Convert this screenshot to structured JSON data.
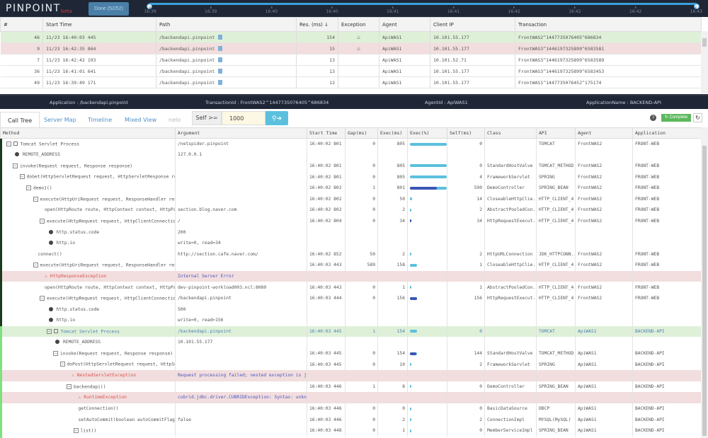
{
  "header": {
    "logo": "PINPOINT",
    "beta": "beta",
    "done_label": "Done (52/52)",
    "timeline_ticks": [
      "16:39",
      "16:39",
      "16:40",
      "16:40",
      "16:41",
      "16:41",
      "16:42",
      "16:42",
      "16:42",
      "16:43"
    ]
  },
  "transactions": {
    "columns": [
      "#",
      "Start Time",
      "Path",
      "Res. (ms) ↓",
      "Exception",
      "Agent",
      "Client IP",
      "Transaction"
    ],
    "rows": [
      {
        "n": "46",
        "start": "11/23 16:40:03 445",
        "path": "/backendapi.pinpoint",
        "res": "154",
        "exception": true,
        "agent": "ApiWAS1",
        "ip": "10.101.55.177",
        "tx": "FrontWAS2^1447735076405^686834",
        "state": "ok"
      },
      {
        "n": "9",
        "start": "11/23 16:42:35 864",
        "path": "/backendapi.pinpoint",
        "res": "15",
        "exception": true,
        "agent": "ApiWAS1",
        "ip": "10.101.55.177",
        "tx": "FrontWAS3^1446197325899^6583581",
        "state": "err"
      },
      {
        "n": "7",
        "start": "11/23 16:42:42 193",
        "path": "/backendapi.pinpoint",
        "res": "13",
        "exception": false,
        "agent": "ApiWAS1",
        "ip": "10.101.52.71",
        "tx": "FrontWAS3^1446197325899^6583589",
        "state": ""
      },
      {
        "n": "36",
        "start": "11/23 16:41:01 641",
        "path": "/backendapi.pinpoint",
        "res": "13",
        "exception": false,
        "agent": "ApiWAS1",
        "ip": "10.101.55.177",
        "tx": "FrontWAS3^1446197325899^6583453",
        "state": ""
      },
      {
        "n": "49",
        "start": "11/23 16:39:49 171",
        "path": "/backendapi.pinpoint",
        "res": "12",
        "exception": false,
        "agent": "ApiWAS1",
        "ip": "10.101.55.177",
        "tx": "FrontWAS1^1447735076452^175174",
        "state": ""
      }
    ]
  },
  "info": {
    "application": "Application : /backendapi.pinpoint",
    "transaction_id": "TransactionId : FrontWAS2^1447735076405^686834",
    "agent_id": "AgentId : ApiWAS1",
    "application_name": "ApplicationName : BACKEND-API"
  },
  "tabs": [
    "Call Tree",
    "Server Map",
    "Timeline",
    "Mixed View",
    "nelo"
  ],
  "filter": {
    "label": "Self >=",
    "value": "1000",
    "search_icon": "search-forward-icon"
  },
  "toolbar": {
    "help": "?",
    "complete": "↻ Complete",
    "refresh": "↻"
  },
  "calltree": {
    "columns": [
      "Method",
      "Argument",
      "Start Time",
      "Gap(ms)",
      "Exec(ms)",
      "Exec(%)",
      "Self(ms)",
      "Class",
      "API",
      "Agent",
      "Application"
    ],
    "max_exec": 805,
    "rows": [
      {
        "lvl": 0,
        "tog": true,
        "icon": "servlet",
        "method": "Tomcat Servlet Process",
        "arg": "/netspider.pinpoint",
        "start": "16:40:02 801",
        "gap": "0",
        "exec": "805",
        "self": "0",
        "cls": "",
        "api": "TOMCAT",
        "agent": "FrontWAS2",
        "app": "FRONT-WEB",
        "state": ""
      },
      {
        "lvl": 1,
        "tog": false,
        "icon": "info",
        "method": "REMOTE_ADDRESS",
        "arg": "127.0.0.1",
        "state": ""
      },
      {
        "lvl": 1,
        "tog": true,
        "method": "invoke(Request request, Response response)",
        "arg": "",
        "start": "16:40:02 801",
        "gap": "0",
        "exec": "805",
        "self": "0",
        "cls": "StandardHostValve",
        "api": "TOMCAT_METHOD",
        "agent": "FrontWAS2",
        "app": "FRONT-WEB",
        "state": ""
      },
      {
        "lvl": 2,
        "tog": true,
        "method": "doGet(HttpServletRequest request, HttpServletResponse response)",
        "arg": "",
        "start": "16:40:02 801",
        "gap": "0",
        "exec": "805",
        "self": "4",
        "cls": "FrameworkServlet",
        "api": "SPRING",
        "agent": "FrontWAS2",
        "app": "FRONT-WEB",
        "state": ""
      },
      {
        "lvl": 3,
        "tog": true,
        "method": "demo1()",
        "arg": "",
        "start": "16:40:02 802",
        "gap": "1",
        "exec": "801",
        "self": "590",
        "cls": "DemoController",
        "api": "SPRING_BEAN",
        "agent": "FrontWAS2",
        "app": "FRONT-WEB",
        "state": ""
      },
      {
        "lvl": 4,
        "tog": true,
        "method": "execute(HttpUriRequest request, ResponseHandler responseHandler)",
        "arg": "",
        "start": "16:40:02 802",
        "gap": "0",
        "exec": "50",
        "self": "14",
        "cls": "CloseableHttpClie..",
        "api": "HTTP_CLIENT_4",
        "agent": "FrontWAS2",
        "app": "FRONT-WEB",
        "state": ""
      },
      {
        "lvl": 5,
        "tog": false,
        "method": "open(HttpRoute route, HttpContext context, HttpParams params)",
        "arg": "section.blog.naver.com",
        "start": "16:40:02 802",
        "gap": "0",
        "exec": "2",
        "self": "2",
        "cls": "AbstractPooledCon..",
        "api": "HTTP_CLIENT_4",
        "agent": "FrontWAS2",
        "app": "FRONT-WEB",
        "state": ""
      },
      {
        "lvl": 5,
        "tog": true,
        "method": "execute(HttpRequest request, HttpClientConnection conn)",
        "arg": "/",
        "start": "16:40:02 804",
        "gap": "0",
        "exec": "34",
        "self": "34",
        "cls": "HttpRequestExecut..",
        "api": "HTTP_CLIENT_4",
        "agent": "FrontWAS2",
        "app": "FRONT-WEB",
        "state": ""
      },
      {
        "lvl": 6,
        "tog": false,
        "icon": "info",
        "method": "http.status.code",
        "arg": "200",
        "state": ""
      },
      {
        "lvl": 6,
        "tog": false,
        "icon": "info",
        "method": "http.io",
        "arg": "write=0, read=34",
        "state": ""
      },
      {
        "lvl": 4,
        "tog": false,
        "method": "connect()",
        "arg": "http://section.cafe.naver.com/",
        "start": "16:40:02 852",
        "gap": "50",
        "exec": "2",
        "self": "2",
        "cls": "HttpURLConnection",
        "api": "JDK_HTTPCONN..",
        "agent": "FrontWAS2",
        "app": "FRONT-WEB",
        "state": ""
      },
      {
        "lvl": 4,
        "tog": true,
        "method": "execute(HttpUriRequest request, ResponseHandler responseHandler)",
        "arg": "",
        "start": "16:40:03 443",
        "gap": "589",
        "exec": "158",
        "self": "1",
        "cls": "CloseableHttpClie..",
        "api": "HTTP_CLIENT_4",
        "agent": "FrontWAS2",
        "app": "FRONT-WEB",
        "state": ""
      },
      {
        "lvl": 5,
        "tog": false,
        "icon": "exception",
        "method": "HttpResponseException",
        "arg": "Internal Server Error",
        "state": "err"
      },
      {
        "lvl": 5,
        "tog": false,
        "method": "open(HttpRoute route, HttpContext context, HttpParams params)",
        "arg": "dev-pinpoint-workload003.ncl:8080",
        "start": "16:40:03 443",
        "gap": "0",
        "exec": "1",
        "self": "1",
        "cls": "AbstractPooledCon..",
        "api": "HTTP_CLIENT_4",
        "agent": "FrontWAS2",
        "app": "FRONT-WEB",
        "state": ""
      },
      {
        "lvl": 5,
        "tog": true,
        "method": "execute(HttpRequest request, HttpClientConnection conn)",
        "arg": "/backendapi.pinpoint",
        "start": "16:40:03 444",
        "gap": "0",
        "exec": "156",
        "self": "156",
        "cls": "HttpRequestExecut..",
        "api": "HTTP_CLIENT_4",
        "agent": "FrontWAS2",
        "app": "FRONT-WEB",
        "state": ""
      },
      {
        "lvl": 6,
        "tog": false,
        "icon": "info",
        "method": "http.status.code",
        "arg": "500",
        "state": ""
      },
      {
        "lvl": 6,
        "tog": false,
        "icon": "info",
        "method": "http.io",
        "arg": "write=0, read=156",
        "state": ""
      },
      {
        "lvl": 6,
        "tog": true,
        "icon": "servlet",
        "method": "Tomcat Servlet Process",
        "arg": "/backendapi.pinpoint",
        "start": "16:40:03 445",
        "gap": "1",
        "exec": "154",
        "self": "0",
        "cls": "",
        "api": "TOMCAT",
        "agent": "ApiWAS1",
        "app": "BACKEND-API",
        "state": "hl"
      },
      {
        "lvl": 7,
        "tog": false,
        "icon": "info",
        "method": "REMOTE_ADDRESS",
        "arg": "10.101.55.177",
        "state": ""
      },
      {
        "lvl": 7,
        "tog": true,
        "method": "invoke(Request request, Response response)",
        "arg": "",
        "start": "16:40:03 445",
        "gap": "0",
        "exec": "154",
        "self": "144",
        "cls": "StandardHostValve",
        "api": "TOMCAT_METHOD",
        "agent": "ApiWAS1",
        "app": "BACKEND-API",
        "state": ""
      },
      {
        "lvl": 8,
        "tog": true,
        "method": "doPost(HttpServletRequest request, HttpServletResponse response)",
        "arg": "",
        "start": "16:40:03 445",
        "gap": "0",
        "exec": "10",
        "self": "2",
        "cls": "FrameworkServlet",
        "api": "SPRING",
        "agent": "ApiWAS1",
        "app": "BACKEND-API",
        "state": ""
      },
      {
        "lvl": 9,
        "tog": false,
        "icon": "exception",
        "method": "NestedServletException",
        "arg": "Request processing failed; nested exception is java.lang.RuntimeException",
        "state": "err"
      },
      {
        "lvl": 9,
        "tog": true,
        "method": "backendapi()",
        "arg": "",
        "start": "16:40:03 446",
        "gap": "1",
        "exec": "8",
        "self": "0",
        "cls": "DemoController",
        "api": "SPRING_BEAN",
        "agent": "ApiWAS1",
        "app": "BACKEND-API",
        "state": ""
      },
      {
        "lvl": 10,
        "tog": false,
        "icon": "exception",
        "method": "RuntimeException",
        "arg": "cubrid.jdbc.driver.CUBRIDException: Syntax: unknown",
        "state": "err"
      },
      {
        "lvl": 10,
        "tog": false,
        "method": "getConnection()",
        "arg": "",
        "start": "16:40:03 446",
        "gap": "0",
        "exec": "0",
        "self": "0",
        "cls": "BasicDataSource",
        "api": "DBCP",
        "agent": "ApiWAS1",
        "app": "BACKEND-API",
        "state": ""
      },
      {
        "lvl": 10,
        "tog": false,
        "method": "setAutoCommit(boolean autoCommitFlag)",
        "arg": "false",
        "start": "16:40:03 446",
        "gap": "0",
        "exec": "2",
        "self": "2",
        "cls": "ConnectionImpl",
        "api": "MYSQL(MySQL)",
        "agent": "ApiWAS1",
        "app": "BACKEND-API",
        "state": ""
      },
      {
        "lvl": 10,
        "tog": true,
        "method": "list()",
        "arg": "",
        "start": "16:40:03 448",
        "gap": "0",
        "exec": "1",
        "self": "0",
        "cls": "MemberServiceImpl",
        "api": "SPRING_BEAN",
        "agent": "ApiWAS1",
        "app": "BACKEND-API",
        "state": ""
      }
    ]
  },
  "colors": {
    "header_bg": "#1f2736",
    "accent": "#3aa0dc",
    "ok_row": "#dff0d8",
    "error_row": "#f2dede",
    "exec_bar": "#5bc0de",
    "self_bar": "#3a55b5",
    "complete": "#5cb85c"
  }
}
